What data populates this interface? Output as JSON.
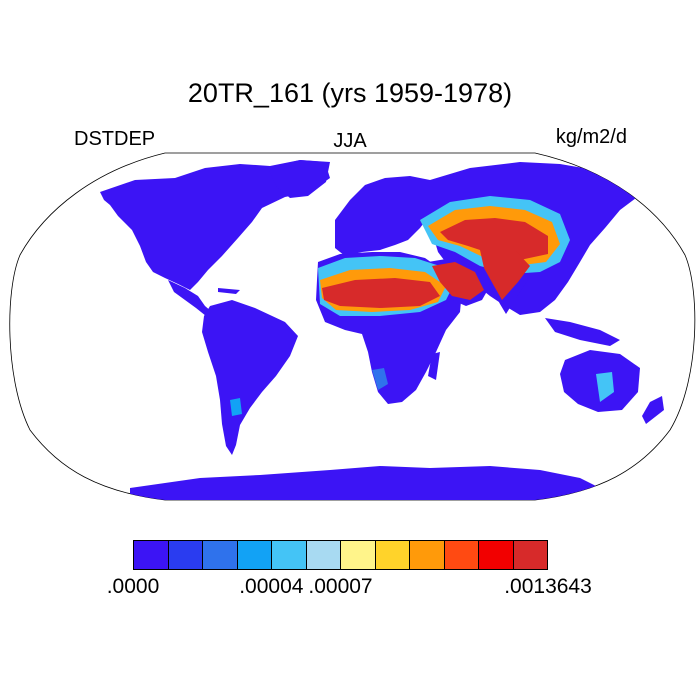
{
  "title": "20TR_161 (yrs 1959-1978)",
  "variable": "DSTDEP",
  "season": "JJA",
  "units": "kg/m2/d",
  "colorbar": {
    "colors": [
      "#3c14f5",
      "#2a3cf0",
      "#2f72ec",
      "#12a2f5",
      "#44c4f6",
      "#a8daf2",
      "#fff48a",
      "#ffd32a",
      "#ff9a0a",
      "#ff4a12",
      "#f20000",
      "#d72a2a"
    ],
    "tick_labels": [
      ".0000",
      ".00004",
      ".00007",
      ".0013643"
    ]
  },
  "map": {
    "projection": "Robinson",
    "land_background_color": "#3c14f5",
    "high_deposition_regions": [
      "Sahara",
      "Arabian Peninsula",
      "Iran",
      "Central Asia",
      "Tibetan Plateau",
      "Indo-Gangetic Plain",
      "Taklamakan / Gobi"
    ]
  }
}
